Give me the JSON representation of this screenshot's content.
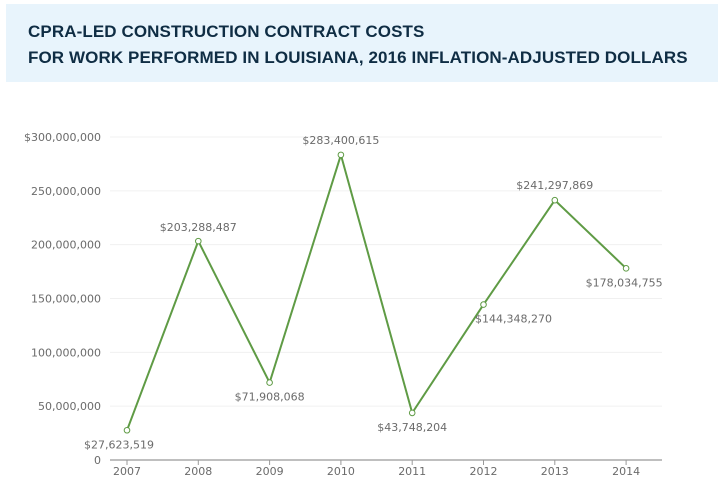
{
  "header": {
    "title_line1": "CPRA-LED CONSTRUCTION CONTRACT COSTS",
    "title_line2": "FOR WORK PERFORMED IN LOUISIANA, 2016 INFLATION-ADJUSTED DOLLARS",
    "background_color": "#e8f4fc",
    "text_color": "#0f2d44"
  },
  "chart_data": {
    "type": "line",
    "title": "CPRA-LED CONSTRUCTION CONTRACT COSTS FOR WORK PERFORMED IN LOUISIANA, 2016 INFLATION-ADJUSTED DOLLARS",
    "xlabel": "",
    "ylabel": "",
    "x": [
      "2007",
      "2008",
      "2009",
      "2010",
      "2011",
      "2012",
      "2013",
      "2014"
    ],
    "series": [
      {
        "name": "Construction contract costs",
        "color": "#5f9b45",
        "values": [
          27623519,
          203288487,
          71908068,
          283400615,
          43748204,
          144348270,
          241297869,
          178034755
        ],
        "labels": [
          "$27,623,519",
          "$203,288,487",
          "$71,908,068",
          "$283,400,615",
          "$43,748,204",
          "$144,348,270",
          "$241,297,869",
          "$178,034,755"
        ]
      }
    ],
    "ylim": [
      0,
      300000000
    ],
    "yticks": [
      0,
      50000000,
      100000000,
      150000000,
      200000000,
      250000000,
      300000000
    ],
    "ytick_labels": [
      "0",
      "50,000,000",
      "100,000,000",
      "150,000,000",
      "200,000,000",
      "250,000,000",
      "$300,000,000"
    ],
    "grid": true,
    "legend": "none"
  }
}
